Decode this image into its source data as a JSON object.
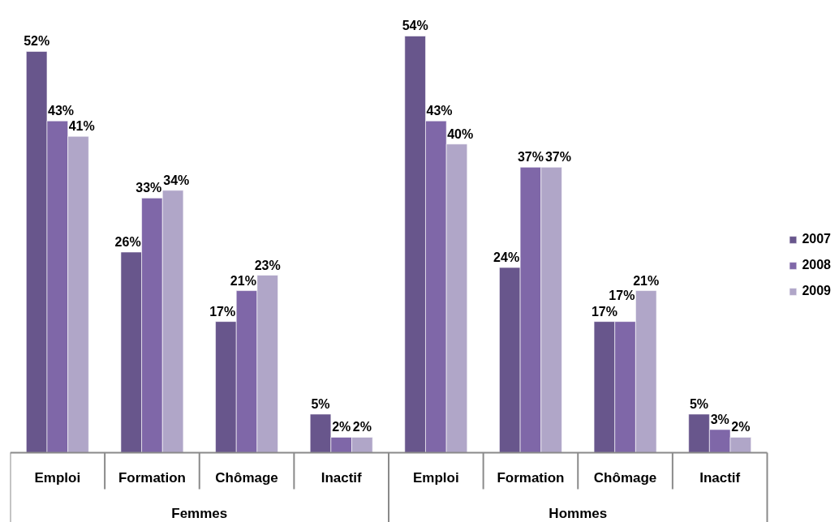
{
  "chart_data": {
    "type": "bar",
    "categories": [
      "Emploi",
      "Formation",
      "Chômage",
      "Inactif",
      "Emploi",
      "Formation",
      "Chômage",
      "Inactif"
    ],
    "annotations": [
      "Femmes",
      "Hommes"
    ],
    "legend": "right",
    "series": [
      {
        "name": "2007",
        "color": "#68568c",
        "values": [
          52,
          26,
          17,
          5,
          54,
          24,
          17,
          5
        ],
        "value_labels": [
          "52%",
          "26%",
          "17%",
          "5%",
          "54%",
          "24%",
          "17%",
          "5%"
        ]
      },
      {
        "name": "2008",
        "color": "#7f67a8",
        "values": [
          43,
          33,
          21,
          2,
          43,
          37,
          17,
          3
        ],
        "value_labels": [
          "43%",
          "33%",
          "21%",
          "2%",
          "43%",
          "37%",
          "17%",
          "3%"
        ]
      },
      {
        "name": "2009",
        "color": "#b0a6c8",
        "values": [
          41,
          34,
          23,
          2,
          40,
          37,
          21,
          2
        ],
        "value_labels": [
          "41%",
          "34%",
          "23%",
          "2%",
          "40%",
          "37%",
          "21%",
          "2%"
        ]
      }
    ]
  }
}
